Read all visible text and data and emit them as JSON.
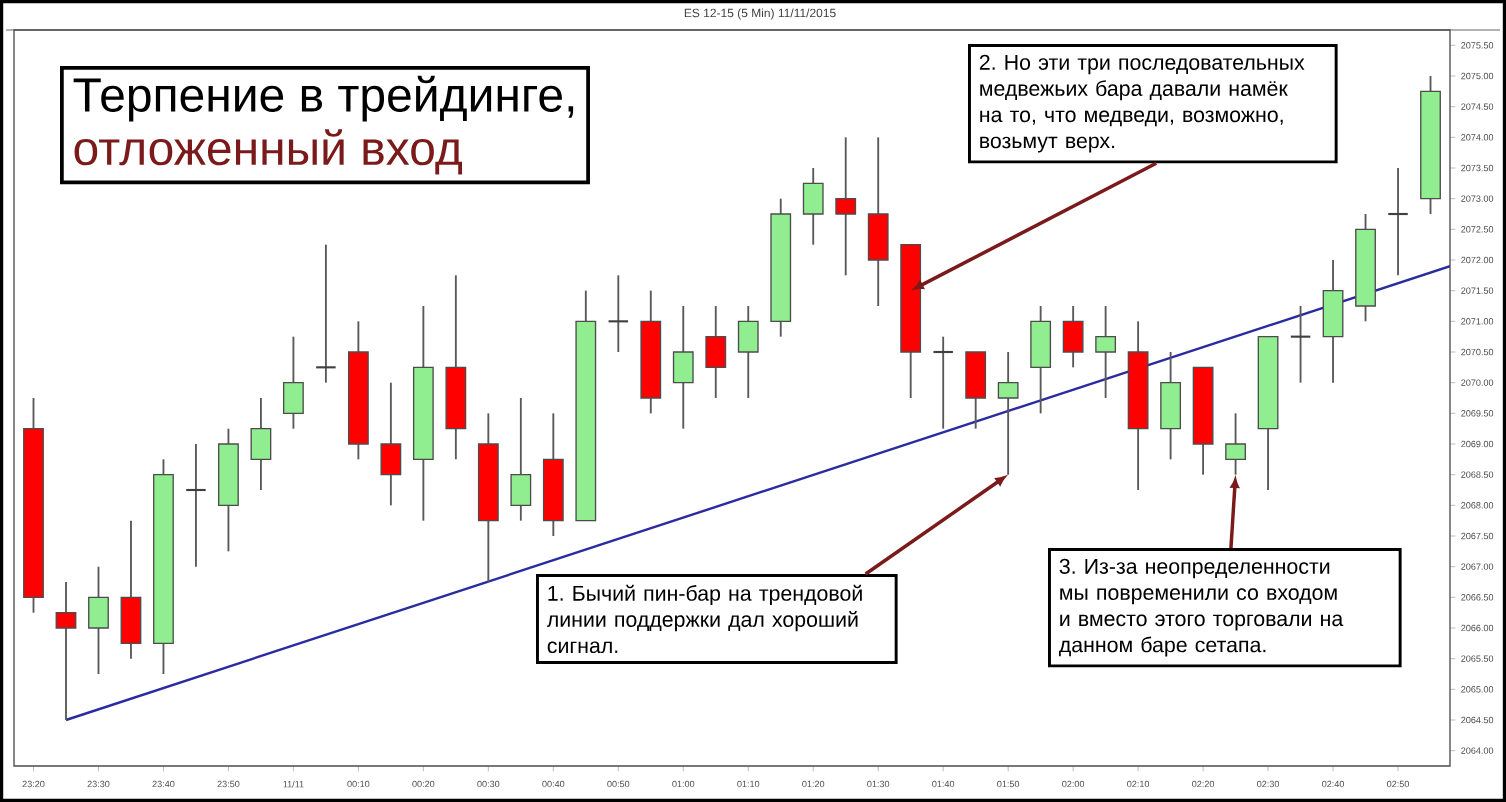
{
  "chart_data": {
    "type": "candlestick",
    "title": "Терпение в трейдинге,",
    "subtitle": "отложенный вход",
    "annotations": [
      "ES 12-15 (5 Min) 11/11/2015",
      {
        "text": "1. Бычий пин-бар на трендовой линии поддержки дал хороший сигнал.",
        "x": "2015-11-11T01:50",
        "y": 2068.5
      },
      {
        "text": "2. Но эти три последовательных медвежьих бара давали намёк на то, что медведи, возможно, возьмут верх.",
        "x": "2015-11-11T01:35",
        "y": 2071.5
      },
      {
        "text": "3. Из-за неопределенности мы повременили со входом и вместо этого торговали на данном баре сетапа.",
        "x": "2015-11-11T02:25",
        "y": 2068.5
      }
    ],
    "x": [
      "2015-11-10T23:20",
      "2015-11-10T23:25",
      "2015-11-10T23:30",
      "2015-11-10T23:35",
      "2015-11-10T23:40",
      "2015-11-10T23:45",
      "2015-11-10T23:50",
      "2015-11-10T23:55",
      "2015-11-11T00:00",
      "2015-11-11T00:05",
      "2015-11-11T00:10",
      "2015-11-11T00:15",
      "2015-11-11T00:20",
      "2015-11-11T00:25",
      "2015-11-11T00:30",
      "2015-11-11T00:35",
      "2015-11-11T00:40",
      "2015-11-11T00:45",
      "2015-11-11T00:50",
      "2015-11-11T00:55",
      "2015-11-11T01:00",
      "2015-11-11T01:05",
      "2015-11-11T01:10",
      "2015-11-11T01:15",
      "2015-11-11T01:20",
      "2015-11-11T01:25",
      "2015-11-11T01:30",
      "2015-11-11T01:35",
      "2015-11-11T01:40",
      "2015-11-11T01:45",
      "2015-11-11T01:50",
      "2015-11-11T01:55",
      "2015-11-11T02:00",
      "2015-11-11T02:05",
      "2015-11-11T02:10",
      "2015-11-11T02:15",
      "2015-11-11T02:20",
      "2015-11-11T02:25",
      "2015-11-11T02:30",
      "2015-11-11T02:35",
      "2015-11-11T02:40",
      "2015-11-11T02:45",
      "2015-11-11T02:50",
      "2015-11-11T02:55"
    ],
    "ohlc": [
      [
        2069.25,
        2069.75,
        2066.25,
        2066.5
      ],
      [
        2066.25,
        2066.75,
        2064.5,
        2066.0
      ],
      [
        2066.0,
        2067.0,
        2065.25,
        2066.5
      ],
      [
        2066.5,
        2067.75,
        2065.5,
        2065.75
      ],
      [
        2065.75,
        2068.75,
        2065.25,
        2068.5
      ],
      [
        2068.25,
        2069.0,
        2067.0,
        2068.25
      ],
      [
        2068.0,
        2069.25,
        2067.25,
        2069.0
      ],
      [
        2068.75,
        2069.75,
        2068.25,
        2069.25
      ],
      [
        2069.5,
        2070.75,
        2069.25,
        2070.0
      ],
      [
        2070.25,
        2072.25,
        2070.0,
        2070.25
      ],
      [
        2070.5,
        2071.0,
        2068.75,
        2069.0
      ],
      [
        2069.0,
        2070.0,
        2068.0,
        2068.5
      ],
      [
        2068.75,
        2071.25,
        2067.75,
        2070.25
      ],
      [
        2070.25,
        2071.75,
        2068.75,
        2069.25
      ],
      [
        2069.0,
        2069.5,
        2066.75,
        2067.75
      ],
      [
        2068.0,
        2069.75,
        2067.75,
        2068.5
      ],
      [
        2068.75,
        2069.5,
        2067.5,
        2067.75
      ],
      [
        2067.75,
        2071.5,
        2067.75,
        2071.0
      ],
      [
        2071.0,
        2071.75,
        2070.5,
        2071.0
      ],
      [
        2071.0,
        2071.5,
        2069.5,
        2069.75
      ],
      [
        2070.0,
        2071.25,
        2069.25,
        2070.5
      ],
      [
        2070.75,
        2071.25,
        2069.75,
        2070.25
      ],
      [
        2070.5,
        2071.25,
        2069.75,
        2071.0
      ],
      [
        2071.0,
        2073.0,
        2070.75,
        2072.75
      ],
      [
        2072.75,
        2073.5,
        2072.25,
        2073.25
      ],
      [
        2073.0,
        2074.0,
        2071.75,
        2072.75
      ],
      [
        2072.75,
        2074.0,
        2071.25,
        2072.0
      ],
      [
        2072.25,
        2072.25,
        2069.75,
        2070.5
      ],
      [
        2070.5,
        2070.75,
        2069.25,
        2070.5
      ],
      [
        2070.5,
        2070.5,
        2069.25,
        2069.75
      ],
      [
        2069.75,
        2070.5,
        2068.5,
        2070.0
      ],
      [
        2070.25,
        2071.25,
        2069.5,
        2071.0
      ],
      [
        2071.0,
        2071.25,
        2070.25,
        2070.5
      ],
      [
        2070.5,
        2071.25,
        2069.75,
        2070.75
      ],
      [
        2070.5,
        2071.0,
        2068.25,
        2069.25
      ],
      [
        2069.25,
        2070.5,
        2068.75,
        2070.0
      ],
      [
        2070.25,
        2070.25,
        2068.5,
        2069.0
      ],
      [
        2068.75,
        2069.5,
        2068.5,
        2069.0
      ],
      [
        2069.25,
        2070.75,
        2068.25,
        2070.75
      ],
      [
        2070.75,
        2071.25,
        2070.0,
        2070.75
      ],
      [
        2070.75,
        2072.0,
        2070.0,
        2071.5
      ],
      [
        2071.25,
        2072.75,
        2071.0,
        2072.5
      ],
      [
        2072.75,
        2073.5,
        2071.75,
        2072.75
      ],
      [
        2073.0,
        2075.0,
        2072.75,
        2074.75
      ]
    ],
    "colors": [
      "#ff0000",
      "#ff0000",
      "#90ee90",
      "#ff0000",
      "#90ee90",
      "#404040",
      "#90ee90",
      "#90ee90",
      "#90ee90",
      "#404040",
      "#ff0000",
      "#ff0000",
      "#90ee90",
      "#ff0000",
      "#ff0000",
      "#90ee90",
      "#ff0000",
      "#90ee90",
      "#404040",
      "#ff0000",
      "#90ee90",
      "#ff0000",
      "#90ee90",
      "#90ee90",
      "#90ee90",
      "#ff0000",
      "#ff0000",
      "#ff0000",
      "#404040",
      "#ff0000",
      "#90ee90",
      "#90ee90",
      "#ff0000",
      "#90ee90",
      "#ff0000",
      "#90ee90",
      "#ff0000",
      "#90ee90",
      "#90ee90",
      "#404040",
      "#90ee90",
      "#90ee90",
      "#404040",
      "#90ee90"
    ],
    "series": [
      {
        "type": "line",
        "color": "#2b2ba0",
        "x": [
          "2015-11-10T23:25",
          "2015-11-11T02:58"
        ],
        "values": [
          2064.5,
          2071.9
        ]
      }
    ],
    "xlim": [
      "2015-11-10T23:17",
      "2015-11-11T02:58"
    ],
    "xticks": [
      {
        "value": "2015-11-10T23:20",
        "label": "23:20"
      },
      {
        "value": "2015-11-10T23:30",
        "label": "23:30"
      },
      {
        "value": "2015-11-10T23:40",
        "label": "23:40"
      },
      {
        "value": "2015-11-10T23:50",
        "label": "23:50"
      },
      {
        "value": "2015-11-11T00:00",
        "label": "11/11"
      },
      {
        "value": "2015-11-11T00:10",
        "label": "00:10"
      },
      {
        "value": "2015-11-11T00:20",
        "label": "00:20"
      },
      {
        "value": "2015-11-11T00:30",
        "label": "00:30"
      },
      {
        "value": "2015-11-11T00:40",
        "label": "00:40"
      },
      {
        "value": "2015-11-11T00:50",
        "label": "00:50"
      },
      {
        "value": "2015-11-11T01:00",
        "label": "01:00"
      },
      {
        "value": "2015-11-11T01:10",
        "label": "01:10"
      },
      {
        "value": "2015-11-11T01:20",
        "label": "01:20"
      },
      {
        "value": "2015-11-11T01:30",
        "label": "01:30"
      },
      {
        "value": "2015-11-11T01:40",
        "label": "01:40"
      },
      {
        "value": "2015-11-11T01:50",
        "label": "01:50"
      },
      {
        "value": "2015-11-11T02:00",
        "label": "02:00"
      },
      {
        "value": "2015-11-11T02:10",
        "label": "02:10"
      },
      {
        "value": "2015-11-11T02:20",
        "label": "02:20"
      },
      {
        "value": "2015-11-11T02:30",
        "label": "02:30"
      },
      {
        "value": "2015-11-11T02:40",
        "label": "02:40"
      },
      {
        "value": "2015-11-11T02:50",
        "label": "02:50"
      }
    ],
    "ylim": [
      2063.75,
      2075.75
    ],
    "yticks": [
      {
        "value": 2064,
        "label": "2064.00"
      },
      {
        "value": 2064.5,
        "label": "2064.50"
      },
      {
        "value": 2065,
        "label": "2065.00"
      },
      {
        "value": 2065.5,
        "label": "2065.50"
      },
      {
        "value": 2066,
        "label": "2066.00"
      },
      {
        "value": 2066.5,
        "label": "2066.50"
      },
      {
        "value": 2067,
        "label": "2067.00"
      },
      {
        "value": 2067.5,
        "label": "2067.50"
      },
      {
        "value": 2068,
        "label": "2068.00"
      },
      {
        "value": 2068.5,
        "label": "2068.50"
      },
      {
        "value": 2069,
        "label": "2069.00"
      },
      {
        "value": 2069.5,
        "label": "2069.50"
      },
      {
        "value": 2070,
        "label": "2070.00"
      },
      {
        "value": 2070.5,
        "label": "2070.50"
      },
      {
        "value": 2071,
        "label": "2071.00"
      },
      {
        "value": 2071.5,
        "label": "2071.50"
      },
      {
        "value": 2072,
        "label": "2072.00"
      },
      {
        "value": 2072.5,
        "label": "2072.50"
      },
      {
        "value": 2073,
        "label": "2073.00"
      },
      {
        "value": 2073.5,
        "label": "2073.50"
      },
      {
        "value": 2074,
        "label": "2074.00"
      },
      {
        "value": 2074.5,
        "label": "2074.50"
      },
      {
        "value": 2075,
        "label": "2075.00"
      },
      {
        "value": 2075.5,
        "label": "2075.50"
      }
    ],
    "grid": false
  }
}
